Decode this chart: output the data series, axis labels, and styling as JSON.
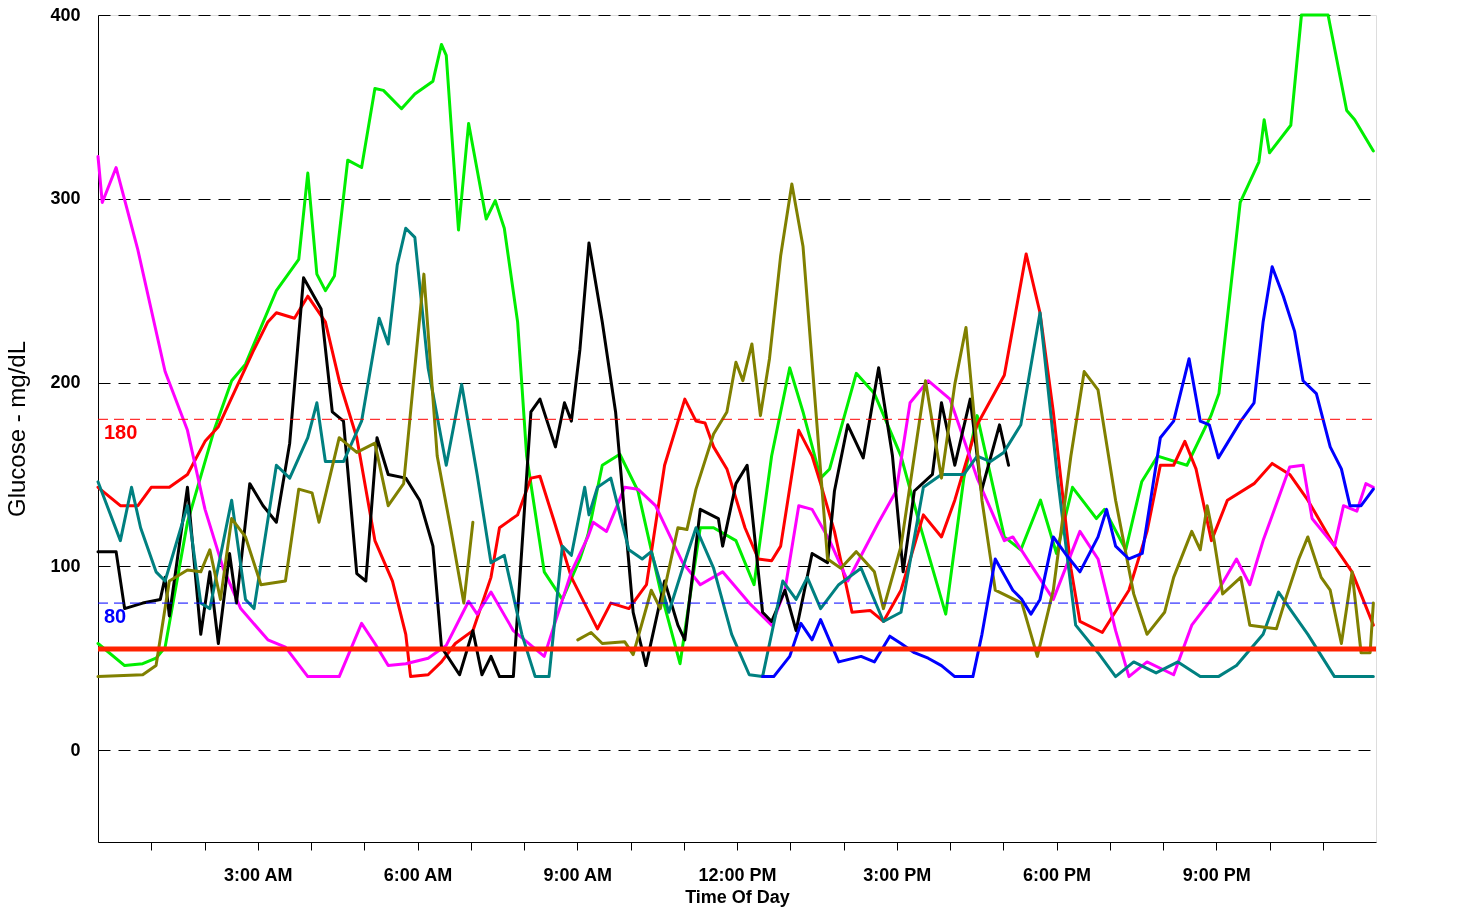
{
  "chart_data": {
    "type": "line",
    "xlabel": "Time Of Day",
    "ylabel": "Glucose - mg/dL",
    "xlim": [
      0,
      24
    ],
    "ylim": [
      -50,
      400
    ],
    "xticks": [
      {
        "value": 1,
        "label": null
      },
      {
        "value": 2,
        "label": null
      },
      {
        "value": 3,
        "label": "3:00 AM"
      },
      {
        "value": 4,
        "label": null
      },
      {
        "value": 5,
        "label": null
      },
      {
        "value": 6,
        "label": "6:00 AM"
      },
      {
        "value": 7,
        "label": null
      },
      {
        "value": 8,
        "label": null
      },
      {
        "value": 9,
        "label": "9:00 AM"
      },
      {
        "value": 10,
        "label": null
      },
      {
        "value": 11,
        "label": null
      },
      {
        "value": 12,
        "label": "12:00 PM"
      },
      {
        "value": 13,
        "label": null
      },
      {
        "value": 14,
        "label": null
      },
      {
        "value": 15,
        "label": "3:00 PM"
      },
      {
        "value": 16,
        "label": null
      },
      {
        "value": 17,
        "label": null
      },
      {
        "value": 18,
        "label": "6:00 PM"
      },
      {
        "value": 19,
        "label": null
      },
      {
        "value": 20,
        "label": null
      },
      {
        "value": 21,
        "label": "9:00 PM"
      },
      {
        "value": 22,
        "label": null
      },
      {
        "value": 23,
        "label": null
      }
    ],
    "yticks": [
      0,
      100,
      200,
      300,
      400
    ],
    "grid": "y",
    "legend": false,
    "marker": "none",
    "line_style": "solid",
    "ref_lines": [
      {
        "axis": "y",
        "value": 180,
        "label": "180",
        "color": "#ff0000",
        "line_style": "dashed"
      },
      {
        "axis": "y",
        "value": 80,
        "label": "80",
        "color": "#0000ff",
        "line_style": "dashed"
      },
      {
        "axis": "y",
        "value": 55,
        "label": null,
        "color": "#ff2200",
        "line_style": "solid"
      }
    ],
    "series": [
      {
        "color": "#00ee00",
        "x": [
          0,
          0.5,
          0.84,
          1.09,
          1.26,
          1.68,
          2.18,
          2.51,
          2.77,
          3.35,
          3.77,
          3.94,
          4.11,
          4.27,
          4.44,
          4.69,
          4.95,
          5.2,
          5.36,
          5.7,
          5.95,
          6.29,
          6.45,
          6.54,
          6.77,
          6.96,
          7.29,
          7.46,
          7.63,
          7.88,
          8.05,
          8.38,
          8.72,
          9.05,
          9.2,
          9.47,
          9.8,
          10.14,
          10.56,
          10.93,
          11.31,
          11.56,
          11.98,
          12.32,
          12.65,
          12.99,
          13.24,
          13.57,
          13.74,
          14.24,
          14.58,
          15.08,
          15.42,
          15.92,
          16.26,
          16.51,
          17.02,
          17.33,
          17.7,
          18.0,
          18.3,
          18.75,
          18.9,
          19.3,
          19.6,
          19.9,
          20.45,
          20.9,
          21.05,
          21.45,
          21.8,
          21.9,
          22.0,
          22.4,
          22.6,
          23.1,
          23.45,
          23.6,
          23.95
        ],
        "values": [
          58,
          46,
          47,
          50,
          56,
          124,
          174,
          201,
          210,
          250,
          267,
          314,
          259,
          250,
          258,
          321,
          317,
          360,
          359,
          349,
          357,
          364,
          384,
          378,
          283,
          341,
          289,
          299,
          284,
          233,
          160,
          97,
          82,
          104,
          117,
          155,
          161,
          141,
          87,
          47,
          121,
          121,
          114,
          90,
          160,
          208,
          184,
          148,
          153,
          205,
          194,
          160,
          124,
          74,
          148,
          182,
          116,
          109,
          136,
          107,
          143,
          126,
          131,
          109,
          146,
          160,
          155,
          182,
          194,
          298,
          320,
          343,
          325,
          340,
          400,
          400,
          348,
          343,
          326
        ]
      },
      {
        "color": "#ff0000",
        "x": [
          0,
          0.42,
          0.75,
          1.0,
          1.34,
          1.68,
          2.01,
          2.26,
          2.77,
          2.93,
          3.19,
          3.35,
          3.69,
          3.94,
          4.27,
          4.53,
          4.86,
          5.2,
          5.53,
          5.78,
          5.87,
          6.2,
          6.45,
          6.71,
          7.04,
          7.38,
          7.54,
          7.88,
          8.13,
          8.3,
          8.55,
          8.89,
          9.38,
          9.63,
          9.97,
          10.3,
          10.64,
          11.02,
          11.23,
          11.4,
          11.56,
          11.81,
          12.15,
          12.4,
          12.65,
          12.82,
          13.16,
          13.41,
          13.57,
          13.83,
          14.16,
          14.5,
          14.75,
          15.08,
          15.5,
          15.84,
          16.09,
          16.51,
          17.02,
          17.43,
          17.69,
          17.94,
          18.27,
          18.44,
          18.86,
          19.36,
          19.7,
          19.95,
          20.2,
          20.41,
          20.62,
          20.91,
          21.21,
          21.71,
          22.05,
          22.38,
          22.72,
          23.22,
          23.55,
          23.95
        ],
        "values": [
          143,
          133,
          133,
          143,
          143,
          150,
          168,
          176,
          208,
          218,
          233,
          238,
          235,
          247,
          233,
          201,
          170,
          114,
          92,
          63,
          40,
          41,
          48,
          58,
          65,
          94,
          121,
          128,
          148,
          149,
          126,
          94,
          66,
          80,
          77,
          90,
          155,
          191,
          179,
          178,
          165,
          153,
          121,
          104,
          103,
          111,
          174,
          160,
          145,
          119,
          75,
          76,
          70,
          87,
          128,
          116,
          136,
          177,
          204,
          270,
          238,
          184,
          99,
          70,
          64,
          87,
          119,
          155,
          155,
          168,
          153,
          114,
          136,
          145,
          156,
          150,
          136,
          111,
          97,
          68
        ]
      },
      {
        "color": "#ff00ff",
        "x": [
          0,
          0.08,
          0.34,
          0.75,
          1.26,
          1.68,
          2.01,
          2.35,
          2.68,
          3.19,
          3.52,
          3.94,
          4.53,
          4.95,
          5.2,
          5.45,
          5.78,
          6.2,
          6.54,
          6.96,
          7.12,
          7.38,
          7.8,
          8.38,
          8.89,
          9.2,
          9.3,
          9.55,
          9.89,
          10.14,
          10.47,
          10.98,
          11.31,
          11.73,
          12.23,
          12.65,
          12.9,
          13.16,
          13.41,
          13.74,
          14.08,
          14.66,
          14.99,
          15.25,
          15.59,
          16.0,
          16.51,
          17.02,
          17.18,
          17.94,
          18.44,
          18.78,
          19.11,
          19.36,
          19.7,
          20.2,
          20.54,
          21.04,
          21.38,
          21.63,
          21.88,
          22.38,
          22.63,
          22.8,
          23.22,
          23.39,
          23.64,
          23.81,
          23.95
        ],
        "values": [
          323,
          298,
          317,
          272,
          206,
          174,
          131,
          99,
          77,
          60,
          56,
          40,
          40,
          69,
          58,
          46,
          47,
          50,
          57,
          81,
          74,
          86,
          65,
          51,
          97,
          116,
          124,
          119,
          143,
          142,
          133,
          102,
          90,
          97,
          80,
          68,
          87,
          133,
          131,
          114,
          92,
          124,
          141,
          189,
          201,
          191,
          148,
          114,
          116,
          82,
          119,
          104,
          65,
          40,
          48,
          41,
          68,
          87,
          104,
          90,
          114,
          154,
          155,
          126,
          111,
          133,
          130,
          145,
          143
        ]
      },
      {
        "color": "#000000",
        "x": [
          0,
          0.34,
          0.5,
          0.84,
          1.17,
          1.26,
          1.34,
          1.68,
          1.93,
          2.1,
          2.26,
          2.47,
          2.6,
          2.85,
          3.1,
          3.35,
          3.6,
          3.86,
          4.19,
          4.4,
          4.61,
          4.86,
          5.03,
          5.24,
          5.45,
          5.78,
          6.04,
          6.29,
          6.45,
          6.79,
          7.04,
          7.21,
          7.38,
          7.54,
          7.8,
          8.13,
          8.3,
          8.59,
          8.76,
          8.89,
          9.05,
          9.22,
          9.47,
          9.72,
          10.05,
          10.29,
          10.64,
          10.89,
          11.02,
          11.31,
          11.65,
          11.73,
          11.98,
          12.19,
          12.48,
          12.65,
          12.9,
          13.11,
          13.41,
          13.7,
          13.83,
          14.08,
          14.37,
          14.66,
          14.92,
          15.12,
          15.33,
          15.67,
          15.84,
          16.09,
          16.38,
          16.59,
          16.93,
          17.1
        ],
        "values": [
          108,
          108,
          77,
          80,
          82,
          94,
          73,
          143,
          63,
          97,
          58,
          107,
          80,
          145,
          133,
          124,
          167,
          257,
          240,
          184,
          179,
          96,
          92,
          170,
          150,
          148,
          136,
          111,
          56,
          41,
          65,
          41,
          51,
          40,
          40,
          184,
          191,
          165,
          189,
          179,
          218,
          276,
          233,
          184,
          75,
          46,
          92,
          68,
          60,
          131,
          126,
          111,
          145,
          155,
          75,
          70,
          87,
          65,
          107,
          102,
          141,
          177,
          159,
          208,
          160,
          97,
          141,
          150,
          189,
          155,
          191,
          141,
          177,
          155
        ]
      },
      {
        "color": "#008080",
        "x": [
          0,
          0.42,
          0.63,
          0.8,
          1.09,
          1.26,
          1.68,
          1.93,
          2.1,
          2.51,
          2.77,
          2.93,
          3.35,
          3.6,
          3.94,
          4.11,
          4.27,
          4.61,
          4.95,
          5.28,
          5.45,
          5.62,
          5.78,
          5.95,
          6.2,
          6.54,
          6.83,
          7.12,
          7.38,
          7.63,
          7.96,
          8.21,
          8.47,
          8.72,
          8.89,
          9.14,
          9.22,
          9.38,
          9.63,
          9.97,
          10.22,
          10.39,
          10.72,
          10.98,
          11.23,
          11.56,
          11.9,
          12.23,
          12.48,
          12.86,
          13.11,
          13.32,
          13.57,
          13.91,
          14.33,
          14.75,
          15.08,
          15.5,
          15.84,
          16.26,
          16.51,
          16.76,
          17.01,
          17.33,
          17.69,
          18.02,
          18.36,
          18.78,
          19.11,
          19.45,
          19.87,
          20.28,
          20.7,
          21.04,
          21.38,
          21.88,
          22.17,
          22.38,
          22.72,
          23.22,
          23.95
        ],
        "values": [
          146,
          114,
          143,
          121,
          97,
          92,
          133,
          80,
          77,
          136,
          82,
          77,
          155,
          148,
          170,
          189,
          157,
          157,
          179,
          235,
          221,
          264,
          284,
          279,
          208,
          155,
          199,
          150,
          102,
          106,
          63,
          40,
          40,
          111,
          106,
          143,
          128,
          143,
          148,
          109,
          104,
          108,
          75,
          99,
          121,
          99,
          63,
          41,
          40,
          92,
          82,
          94,
          77,
          90,
          99,
          70,
          75,
          143,
          150,
          150,
          160,
          157,
          162,
          177,
          238,
          148,
          68,
          53,
          40,
          48,
          42,
          48,
          40,
          40,
          46,
          63,
          86,
          77,
          63,
          40,
          40
        ]
      },
      {
        "color": "#808000",
        "x": [
          0,
          0.84,
          1.09,
          1.34,
          1.68,
          1.93,
          2.1,
          2.3,
          2.51,
          2.77,
          3.06,
          3.52,
          3.77,
          4.02,
          4.15,
          4.53,
          4.86,
          5.2,
          5.45,
          5.74,
          6.12,
          6.37,
          6.62,
          6.87,
          7.04,
          8.0,
          9.01,
          9.26,
          9.47,
          9.89,
          10.05,
          10.39,
          10.56,
          10.89,
          11.06,
          11.23,
          11.56,
          11.81,
          11.98,
          12.11,
          12.28,
          12.44,
          12.61,
          12.82,
          13.03,
          13.24,
          13.45,
          13.7,
          13.95,
          14.24,
          14.58,
          14.75,
          15.08,
          15.33,
          15.54,
          15.84,
          16.09,
          16.3,
          16.6,
          16.85,
          17.35,
          17.64,
          17.94,
          18.27,
          18.52,
          18.78,
          19.11,
          19.45,
          19.7,
          20.03,
          20.2,
          20.54,
          20.7,
          20.83,
          20.96,
          21.12,
          21.46,
          21.63,
          22.13,
          22.3,
          22.55,
          22.72,
          22.97,
          23.14,
          23.35,
          23.55,
          23.72,
          23.89,
          23.95
        ],
        "values": [
          40,
          41,
          46,
          92,
          98,
          97,
          109,
          82,
          126,
          116,
          90,
          92,
          142,
          140,
          124,
          170,
          162,
          167,
          133,
          145,
          259,
          160,
          121,
          80,
          124,
          null,
          60,
          64,
          58,
          59,
          52,
          87,
          77,
          121,
          120,
          142,
          172,
          184,
          211,
          201,
          221,
          182,
          213,
          269,
          308,
          274,
          196,
          104,
          99,
          108,
          97,
          77,
          111,
          160,
          201,
          148,
          199,
          230,
          136,
          87,
          80,
          51,
          87,
          160,
          206,
          196,
          136,
          85,
          63,
          75,
          94,
          119,
          109,
          133,
          114,
          85,
          94,
          68,
          66,
          82,
          104,
          116,
          94,
          87,
          58,
          97,
          53,
          53,
          80
        ]
      },
      {
        "color": "#0000ff",
        "x": [
          12.48,
          12.69,
          12.99,
          13.2,
          13.41,
          13.57,
          13.91,
          14.33,
          14.58,
          14.87,
          15.08,
          15.33,
          15.59,
          15.84,
          16.09,
          16.43,
          16.6,
          16.85,
          17.18,
          17.35,
          17.52,
          17.69,
          17.94,
          18.19,
          18.44,
          18.78,
          18.94,
          19.11,
          19.36,
          19.61,
          19.95,
          20.2,
          20.49,
          20.7,
          20.87,
          21.04,
          21.46,
          21.71,
          21.88,
          22.05,
          22.26,
          22.47,
          22.63,
          22.88,
          23.14,
          23.35,
          23.51,
          23.72,
          23.95
        ],
        "values": [
          40,
          40,
          51,
          69,
          60,
          71,
          48,
          51,
          48,
          62,
          58,
          53,
          50,
          46,
          40,
          40,
          63,
          104,
          87,
          82,
          74,
          82,
          116,
          106,
          97,
          116,
          131,
          111,
          104,
          107,
          170,
          179,
          213,
          179,
          177,
          159,
          179,
          189,
          233,
          263,
          247,
          228,
          201,
          194,
          165,
          153,
          133,
          133,
          142
        ]
      }
    ]
  }
}
